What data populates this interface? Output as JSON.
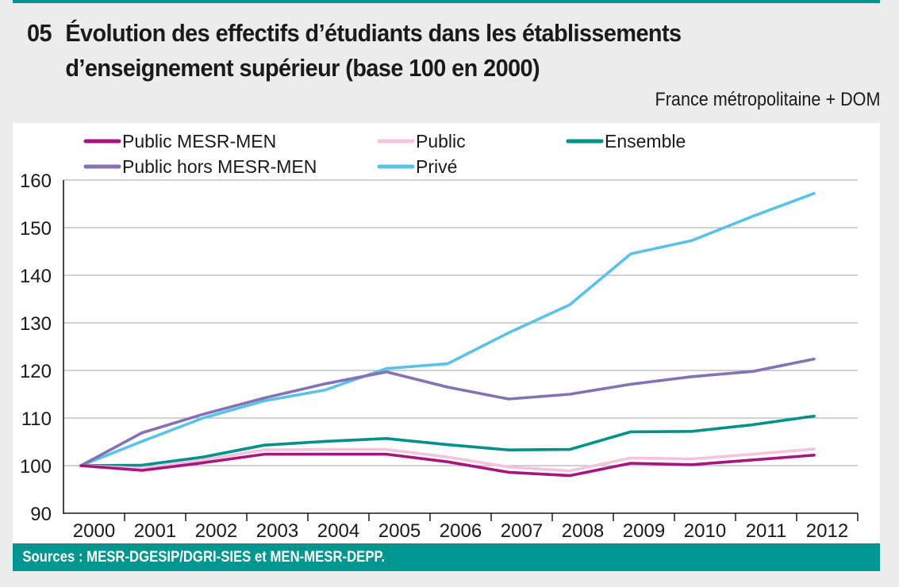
{
  "header": {
    "number": "05",
    "title_line1": "Évolution des effectifs d’étudiants dans les établissements",
    "title_line2": "d’enseignement supérieur (base 100 en 2000)",
    "subtitle": "France métropolitaine + DOM"
  },
  "footer": {
    "sources": "Sources : MESR-DGESIP/DGRI-SIES et MEN-MESR-DEPP."
  },
  "chart_data": {
    "type": "line",
    "title": "Évolution des effectifs d’étudiants dans les établissements d’enseignement supérieur (base 100 en 2000)",
    "subtitle": "France métropolitaine + DOM",
    "xlabel": "",
    "ylabel": "",
    "ylim": [
      90,
      160
    ],
    "yticks": [
      90,
      100,
      110,
      120,
      130,
      140,
      150,
      160
    ],
    "grid": true,
    "legend_position": "top",
    "x": [
      "2000",
      "2001",
      "2002",
      "2003",
      "2004",
      "2005",
      "2006",
      "2007",
      "2008",
      "2009",
      "2010",
      "2011",
      "2012"
    ],
    "series": [
      {
        "name": "Public MESR-MEN",
        "color": "#a7157f",
        "values": [
          100,
          99.0,
          100.6,
          102.4,
          102.4,
          102.4,
          100.8,
          98.6,
          97.9,
          100.5,
          100.2,
          101.2,
          102.2
        ]
      },
      {
        "name": "Public",
        "color": "#f4c3dc",
        "values": [
          100,
          99.4,
          101.2,
          103.3,
          103.4,
          103.4,
          101.8,
          99.7,
          98.9,
          101.6,
          101.4,
          102.4,
          103.5
        ]
      },
      {
        "name": "Ensemble",
        "color": "#00918b",
        "values": [
          100,
          100.1,
          101.8,
          104.3,
          105.1,
          105.7,
          104.4,
          103.3,
          103.4,
          107.1,
          107.2,
          108.6,
          110.4
        ]
      },
      {
        "name": "Public hors MESR-MEN",
        "color": "#8472b5",
        "values": [
          100,
          106.9,
          110.8,
          114.2,
          117.2,
          119.7,
          116.5,
          114.0,
          115.0,
          117.1,
          118.7,
          119.8,
          122.4
        ]
      },
      {
        "name": "Privé",
        "color": "#5bc2e7",
        "values": [
          100,
          105.1,
          110.0,
          113.6,
          115.9,
          120.4,
          121.4,
          127.9,
          133.8,
          144.5,
          147.3,
          152.4,
          157.2
        ]
      }
    ]
  }
}
